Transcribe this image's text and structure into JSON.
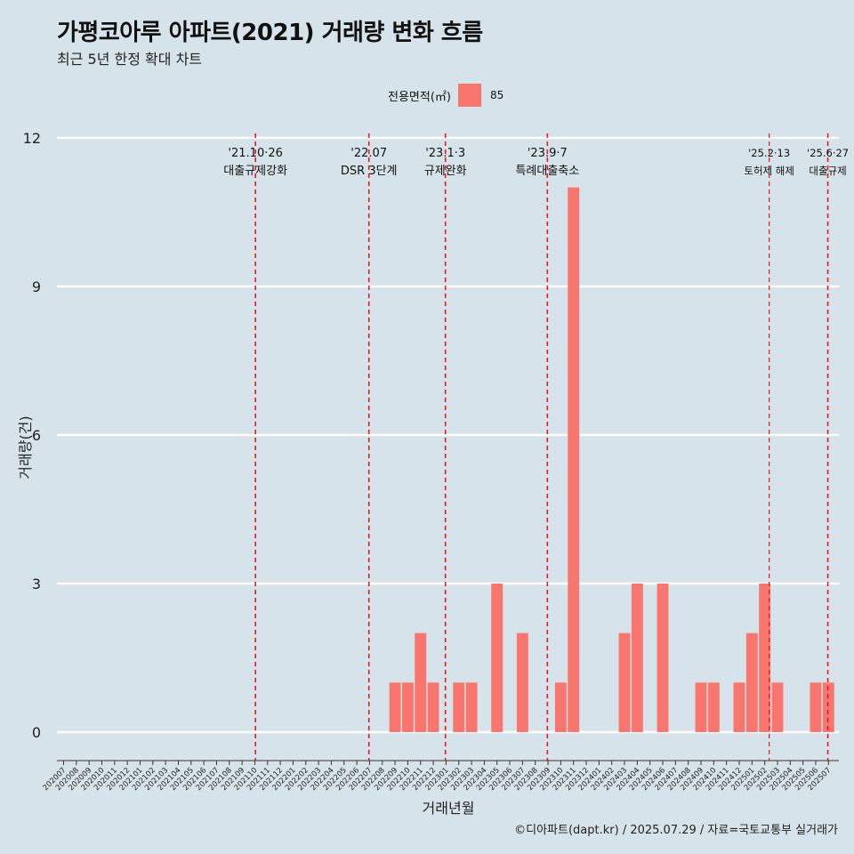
{
  "title": "가평코아루 아파트(2021) 거래량 변화 흐름",
  "subtitle": "최근 5년 한정 확대 차트",
  "legend": {
    "title": "전용면적(㎡)",
    "item": "85",
    "color": "#f8766d"
  },
  "caption": "©디아파트(dapt.kr) / 2025.07.29 / 자료=국토교통부 실거래가",
  "colors": {
    "background": "#d7e3ea",
    "bar": "#f8766d",
    "event_line": "#e41a1c",
    "grid": "#ffffff"
  },
  "chart_data": {
    "type": "bar",
    "xlabel": "거래년월",
    "ylabel": "거래량(건)",
    "ylim": [
      0,
      12
    ],
    "yticks": [
      0,
      3,
      6,
      9,
      12
    ],
    "grid": true,
    "legend_position": "top",
    "categories": [
      "202007",
      "202008",
      "202009",
      "202010",
      "202011",
      "202012",
      "202101",
      "202102",
      "202103",
      "202104",
      "202105",
      "202106",
      "202107",
      "202108",
      "202109",
      "202110",
      "202111",
      "202112",
      "202201",
      "202202",
      "202203",
      "202204",
      "202205",
      "202206",
      "202207",
      "202208",
      "202209",
      "202210",
      "202211",
      "202212",
      "202301",
      "202302",
      "202303",
      "202304",
      "202305",
      "202306",
      "202307",
      "202308",
      "202309",
      "202310",
      "202311",
      "202312",
      "202401",
      "202402",
      "202403",
      "202404",
      "202405",
      "202406",
      "202407",
      "202408",
      "202409",
      "202410",
      "202411",
      "202412",
      "202501",
      "202502",
      "202503",
      "202504",
      "202505",
      "202506",
      "202507"
    ],
    "series": [
      {
        "name": "85",
        "values": [
          0,
          0,
          0,
          0,
          0,
          0,
          0,
          0,
          0,
          0,
          0,
          0,
          0,
          0,
          0,
          0,
          0,
          0,
          0,
          0,
          0,
          0,
          0,
          0,
          0,
          0,
          1,
          1,
          2,
          1,
          0,
          1,
          1,
          0,
          3,
          0,
          2,
          0,
          0,
          1,
          11,
          0,
          0,
          0,
          2,
          3,
          0,
          3,
          0,
          0,
          1,
          1,
          0,
          1,
          2,
          3,
          1,
          0,
          0,
          1,
          1
        ]
      }
    ],
    "events": [
      {
        "at": 15.05,
        "date": "'21.10·26",
        "label": "대출규제강화"
      },
      {
        "at": 23.95,
        "date": "'22.07",
        "label": "DSR 3단계"
      },
      {
        "at": 29.95,
        "date": "'23.1·3",
        "label": "규제완화"
      },
      {
        "at": 37.95,
        "date": "'23.9·7",
        "label": "특례대출축소"
      },
      {
        "at": 55.35,
        "date": "'25.2·13",
        "label": "토허제 해제"
      },
      {
        "at": 59.95,
        "date": "'25.6·27",
        "label": "대출규제"
      }
    ]
  }
}
